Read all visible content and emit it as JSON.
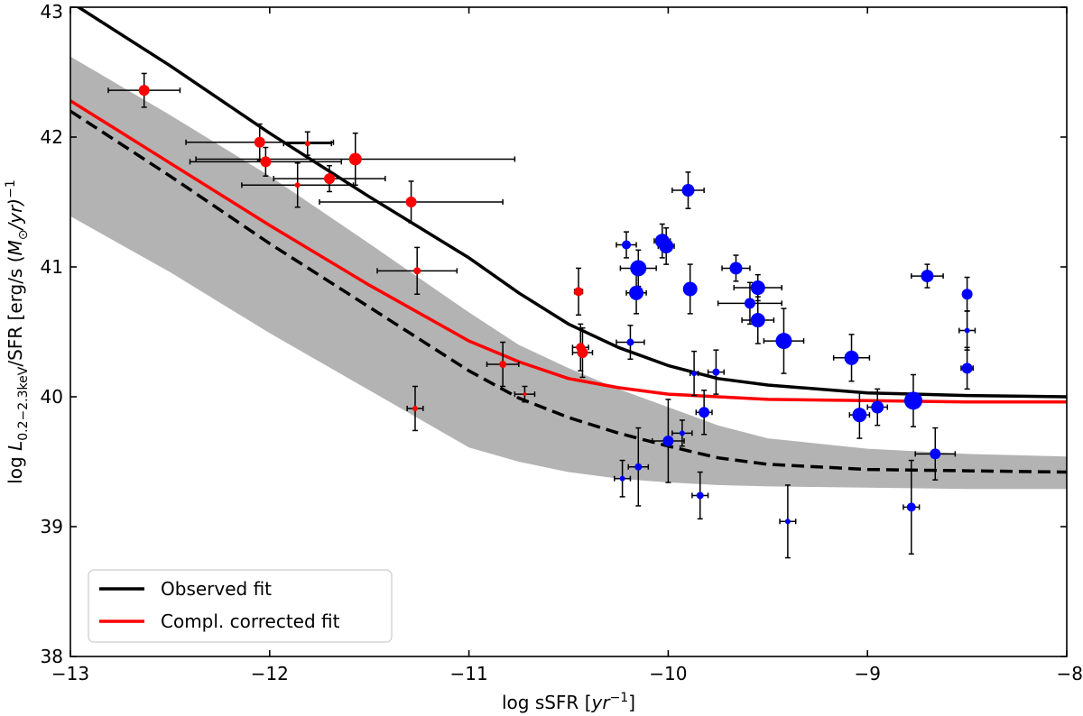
{
  "chart_data": {
    "type": "scatter",
    "title": "",
    "xlabel": "log sSFR [yr⁻¹]",
    "xlabel_prefix": "log sSFR [",
    "xlabel_unit": "yr",
    "xlabel_exp": "−1",
    "xlabel_suffix": "]",
    "ylabel": "log L0.2−2.3keV/SFR [erg/s (M⊙/yr)−1]",
    "ylabel_parts": {
      "prefix": "log ",
      "main": "L",
      "sub": "0.2−2.3keV",
      "mid": "/SFR [erg/s (",
      "msym": "M",
      "msub": "⊙",
      "mtail": "/yr)",
      "exp": "−1",
      "end": ""
    },
    "xlim": [
      -13,
      -8
    ],
    "ylim": [
      38,
      43
    ],
    "xticks": [
      -13,
      -12,
      -11,
      -10,
      -9,
      -8
    ],
    "xtick_labels": [
      "−13",
      "−12",
      "−11",
      "−10",
      "−9",
      "−8"
    ],
    "yticks": [
      38,
      39,
      40,
      41,
      42,
      43
    ],
    "ytick_labels": [
      "38",
      "39",
      "40",
      "41",
      "42",
      "43"
    ],
    "grid": false,
    "legend_position": "lower-left",
    "legend": [
      {
        "label": "Observed fit",
        "color": "#000000"
      },
      {
        "label": "Compl. corrected fit",
        "color": "#ff0000"
      }
    ],
    "lines": [
      {
        "name": "Observed fit",
        "color": "#000000",
        "style": "solid",
        "x": [
          -13.0,
          -12.5,
          -12.0,
          -11.5,
          -11.0,
          -10.75,
          -10.5,
          -10.25,
          -10.0,
          -9.75,
          -9.5,
          -9.0,
          -8.5,
          -8.0
        ],
        "y": [
          43.04,
          42.55,
          42.03,
          41.54,
          41.07,
          40.8,
          40.56,
          40.38,
          40.24,
          40.14,
          40.09,
          40.03,
          40.01,
          40.0
        ]
      },
      {
        "name": "Compl. corrected fit",
        "color": "#ff0000",
        "style": "solid",
        "x": [
          -13.0,
          -12.5,
          -12.0,
          -11.5,
          -11.0,
          -10.75,
          -10.5,
          -10.25,
          -10.0,
          -9.5,
          -9.0,
          -8.5,
          -8.0
        ],
        "y": [
          42.28,
          41.8,
          41.32,
          40.86,
          40.43,
          40.27,
          40.14,
          40.07,
          40.02,
          39.98,
          39.97,
          39.96,
          39.96
        ]
      },
      {
        "name": "Dashed fit",
        "color": "#000000",
        "style": "dashed",
        "x": [
          -13.0,
          -12.5,
          -12.0,
          -11.5,
          -11.0,
          -10.75,
          -10.5,
          -10.25,
          -10.0,
          -9.75,
          -9.5,
          -9.0,
          -8.5,
          -8.0
        ],
        "y": [
          42.2,
          41.7,
          41.18,
          40.69,
          40.2,
          39.99,
          39.84,
          39.72,
          39.62,
          39.53,
          39.48,
          39.44,
          39.43,
          39.42
        ]
      }
    ],
    "band": {
      "color": "#b3b3b3",
      "x": [
        -13.0,
        -12.5,
        -12.0,
        -11.5,
        -11.0,
        -10.75,
        -10.5,
        -10.25,
        -10.0,
        -9.75,
        -9.5,
        -9.0,
        -8.5,
        -8.0
      ],
      "upper": [
        42.62,
        42.17,
        41.7,
        41.18,
        40.65,
        40.4,
        40.22,
        40.06,
        39.92,
        39.78,
        39.68,
        39.6,
        39.56,
        39.54
      ],
      "lower": [
        41.39,
        40.96,
        40.49,
        40.05,
        39.61,
        39.5,
        39.42,
        39.37,
        39.34,
        39.32,
        39.31,
        39.3,
        39.29,
        39.29
      ]
    },
    "series": [
      {
        "name": "red",
        "color": "#ff0000",
        "points": [
          {
            "x": -12.63,
            "y": 42.36,
            "xerr": 0.18,
            "yerr": 0.13,
            "r": 6
          },
          {
            "x": -12.05,
            "y": 41.96,
            "xerr": 0.37,
            "yerr": 0.14,
            "r": 6
          },
          {
            "x": -12.02,
            "y": 41.81,
            "xerr": 0.38,
            "yerr": 0.11,
            "r": 6
          },
          {
            "x": -11.81,
            "y": 41.95,
            "xerr": 0.12,
            "yerr": 0.09,
            "r": 3
          },
          {
            "x": -11.86,
            "y": 41.63,
            "xerr": 0.28,
            "yerr": 0.17,
            "r": 3
          },
          {
            "x": -11.7,
            "y": 41.68,
            "xerr": 0.28,
            "yerr": 0.1,
            "r": 6
          },
          {
            "x": -11.57,
            "y": 41.83,
            "xerr": 0.8,
            "yerr": 0.2,
            "r": 7
          },
          {
            "x": -11.29,
            "y": 41.5,
            "xerr": 0.46,
            "yerr": 0.16,
            "r": 6
          },
          {
            "x": -11.26,
            "y": 40.97,
            "xerr": 0.2,
            "yerr": 0.18,
            "r": 4
          },
          {
            "x": -11.27,
            "y": 39.91,
            "xerr": 0.04,
            "yerr": 0.17,
            "r": 3
          },
          {
            "x": -10.83,
            "y": 40.25,
            "xerr": 0.08,
            "yerr": 0.17,
            "r": 4
          },
          {
            "x": -10.72,
            "y": 40.02,
            "xerr": 0.05,
            "yerr": 0.06,
            "r": 2
          },
          {
            "x": -10.45,
            "y": 40.81,
            "xerr": 0.02,
            "yerr": 0.18,
            "r": 5
          },
          {
            "x": -10.44,
            "y": 40.38,
            "xerr": 0.04,
            "yerr": 0.18,
            "r": 5
          },
          {
            "x": -10.43,
            "y": 40.34,
            "xerr": 0.05,
            "yerr": 0.19,
            "r": 6
          }
        ]
      },
      {
        "name": "blue",
        "color": "#0000ff",
        "points": [
          {
            "x": -10.21,
            "y": 41.17,
            "xerr": 0.05,
            "yerr": 0.1,
            "r": 5
          },
          {
            "x": -10.19,
            "y": 40.42,
            "xerr": 0.07,
            "yerr": 0.13,
            "r": 4
          },
          {
            "x": -10.15,
            "y": 40.99,
            "xerr": 0.09,
            "yerr": 0.14,
            "r": 9
          },
          {
            "x": -10.16,
            "y": 40.8,
            "xerr": 0.05,
            "yerr": 0.16,
            "r": 8
          },
          {
            "x": -10.03,
            "y": 41.2,
            "xerr": 0.04,
            "yerr": 0.13,
            "r": 8
          },
          {
            "x": -10.01,
            "y": 41.16,
            "xerr": 0.04,
            "yerr": 0.14,
            "r": 8
          },
          {
            "x": -9.9,
            "y": 41.59,
            "xerr": 0.08,
            "yerr": 0.14,
            "r": 7
          },
          {
            "x": -9.89,
            "y": 40.83,
            "xerr": 0.03,
            "yerr": 0.19,
            "r": 8
          },
          {
            "x": -9.66,
            "y": 40.99,
            "xerr": 0.07,
            "yerr": 0.1,
            "r": 7
          },
          {
            "x": -9.59,
            "y": 40.72,
            "xerr": 0.16,
            "yerr": 0.16,
            "r": 6
          },
          {
            "x": -9.55,
            "y": 40.84,
            "xerr": 0.12,
            "yerr": 0.1,
            "r": 8
          },
          {
            "x": -9.55,
            "y": 40.59,
            "xerr": 0.08,
            "yerr": 0.18,
            "r": 8
          },
          {
            "x": -9.42,
            "y": 40.43,
            "xerr": 0.1,
            "yerr": 0.25,
            "r": 9
          },
          {
            "x": -9.08,
            "y": 40.3,
            "xerr": 0.09,
            "yerr": 0.18,
            "r": 8
          },
          {
            "x": -9.04,
            "y": 39.86,
            "xerr": 0.05,
            "yerr": 0.18,
            "r": 8
          },
          {
            "x": -8.95,
            "y": 39.92,
            "xerr": 0.05,
            "yerr": 0.14,
            "r": 7
          },
          {
            "x": -8.77,
            "y": 39.97,
            "xerr": 0.04,
            "yerr": 0.2,
            "r": 10
          },
          {
            "x": -8.78,
            "y": 39.15,
            "xerr": 0.04,
            "yerr": 0.36,
            "r": 5
          },
          {
            "x": -8.7,
            "y": 40.93,
            "xerr": 0.08,
            "yerr": 0.09,
            "r": 7
          },
          {
            "x": -8.66,
            "y": 39.56,
            "xerr": 0.1,
            "yerr": 0.2,
            "r": 6
          },
          {
            "x": -8.5,
            "y": 40.79,
            "xerr": 0.02,
            "yerr": 0.13,
            "r": 6
          },
          {
            "x": -8.5,
            "y": 40.51,
            "xerr": 0.04,
            "yerr": 0.15,
            "r": 3
          },
          {
            "x": -8.5,
            "y": 40.22,
            "xerr": 0.03,
            "yerr": 0.16,
            "r": 6
          },
          {
            "x": -9.82,
            "y": 39.88,
            "xerr": 0.04,
            "yerr": 0.17,
            "r": 6
          },
          {
            "x": -9.76,
            "y": 40.19,
            "xerr": 0.04,
            "yerr": 0.17,
            "r": 4
          },
          {
            "x": -9.87,
            "y": 40.18,
            "xerr": 0.02,
            "yerr": 0.17,
            "r": 3
          },
          {
            "x": -9.93,
            "y": 39.72,
            "xerr": 0.05,
            "yerr": 0.1,
            "r": 3
          },
          {
            "x": -10.0,
            "y": 39.66,
            "xerr": 0.08,
            "yerr": 0.32,
            "r": 6
          },
          {
            "x": -10.23,
            "y": 39.37,
            "xerr": 0.04,
            "yerr": 0.14,
            "r": 3
          },
          {
            "x": -10.15,
            "y": 39.46,
            "xerr": 0.05,
            "yerr": 0.3,
            "r": 4
          },
          {
            "x": -9.84,
            "y": 39.24,
            "xerr": 0.04,
            "yerr": 0.18,
            "r": 4
          },
          {
            "x": -9.4,
            "y": 39.04,
            "xerr": 0.04,
            "yerr": 0.28,
            "r": 3
          }
        ]
      }
    ]
  }
}
